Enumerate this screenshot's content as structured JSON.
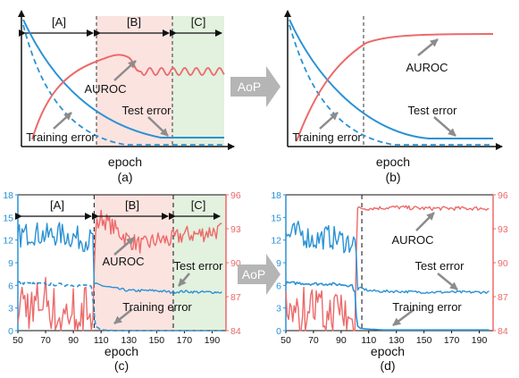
{
  "colors": {
    "blue": "#2a92d4",
    "red": "#ec6a6a",
    "regionA": "#ffffff",
    "regionB": "#fbe3e0",
    "regionC": "#e3f1df",
    "arrow_gray": "#b5b5b5",
    "axis": "#111111"
  },
  "labels": {
    "epoch": "epoch",
    "auroc": "AUROC",
    "test_error": "Test error",
    "training_error": "Training error",
    "aop": "AoP",
    "region_a": "[A]",
    "region_b": "[B]",
    "region_c": "[C]",
    "cap_a": "(a)",
    "cap_b": "(b)",
    "cap_c": "(c)",
    "cap_d": "(d)"
  },
  "chart_data": [
    {
      "panel": "a",
      "type": "line",
      "schematic": true,
      "xlabel": "epoch",
      "regions": [
        "[A]",
        "[B]",
        "[C]"
      ],
      "series": [
        {
          "name": "Test error",
          "style": "solid",
          "color": "#2a92d4"
        },
        {
          "name": "Training error",
          "style": "dashed",
          "color": "#2a92d4"
        },
        {
          "name": "AUROC",
          "style": "solid",
          "color": "#ec6a6a"
        }
      ],
      "annotations": [
        "AUROC",
        "Test error",
        "Training error"
      ]
    },
    {
      "panel": "b",
      "type": "line",
      "schematic": true,
      "xlabel": "epoch",
      "series": [
        {
          "name": "Test error",
          "style": "solid",
          "color": "#2a92d4"
        },
        {
          "name": "Training error",
          "style": "dashed",
          "color": "#2a92d4"
        },
        {
          "name": "AUROC",
          "style": "solid",
          "color": "#ec6a6a"
        }
      ],
      "annotations": [
        "AUROC",
        "Test error",
        "Training error"
      ]
    },
    {
      "panel": "c",
      "type": "line",
      "xlabel": "epoch",
      "xlim": [
        50,
        200
      ],
      "x_ticks": [
        50,
        70,
        90,
        110,
        130,
        150,
        170,
        190
      ],
      "y_left_ticks": [
        0,
        3,
        6,
        9,
        12,
        15,
        18
      ],
      "y_right_ticks": [
        84,
        87,
        90,
        93,
        96
      ],
      "region_bounds": [
        50,
        105,
        162,
        200
      ],
      "regions": [
        "[A]",
        "[B]",
        "[C]"
      ],
      "series": [
        {
          "name": "Test error",
          "axis": "left",
          "x": [
            50,
            60,
            70,
            80,
            90,
            100,
            104,
            105,
            110,
            120,
            130,
            140,
            150,
            160,
            170,
            180,
            190,
            197
          ],
          "values": [
            12.5,
            13,
            12.6,
            12.8,
            12.4,
            12,
            12,
            6.2,
            6,
            5.6,
            5.3,
            5.3,
            5.3,
            5.1,
            5.2,
            5.1,
            5.1,
            5.1
          ]
        },
        {
          "name": "Training error",
          "axis": "left",
          "x": [
            50,
            60,
            70,
            80,
            90,
            100,
            103,
            106,
            110,
            120,
            197
          ],
          "values": [
            6.4,
            6.2,
            6.2,
            6.1,
            6.0,
            6.0,
            5.7,
            0.6,
            0.1,
            0,
            0
          ]
        },
        {
          "name": "AUROC",
          "axis": "right",
          "x": [
            50,
            60,
            70,
            80,
            90,
            100,
            104,
            106,
            110,
            120,
            130,
            140,
            150,
            160,
            170,
            180,
            190,
            197
          ],
          "values": [
            87,
            86,
            87,
            85,
            86,
            86,
            85,
            93,
            94,
            93,
            92,
            91.5,
            92,
            92,
            92.5,
            92.5,
            92.8,
            92.8
          ]
        }
      ]
    },
    {
      "panel": "d",
      "type": "line",
      "xlabel": "epoch",
      "xlim": [
        50,
        200
      ],
      "x_ticks": [
        50,
        70,
        90,
        110,
        130,
        150,
        170,
        190
      ],
      "y_left_ticks": [
        0,
        3,
        6,
        9,
        12,
        15,
        18
      ],
      "y_right_ticks": [
        84,
        87,
        90,
        93,
        96
      ],
      "divider": 105,
      "series": [
        {
          "name": "Test error",
          "axis": "left",
          "x": [
            50,
            60,
            70,
            80,
            90,
            100,
            101,
            102,
            105,
            110,
            120,
            130,
            150,
            170,
            190,
            197
          ],
          "values": [
            12.5,
            13,
            12,
            12.5,
            12,
            11.5,
            10,
            5.5,
            5.6,
            5.3,
            5.2,
            5.2,
            5.1,
            5.1,
            5.1,
            5.1
          ]
        },
        {
          "name": "Training error",
          "axis": "left",
          "x": [
            50,
            60,
            70,
            80,
            90,
            98,
            100,
            101,
            102,
            104,
            110,
            120,
            197
          ],
          "values": [
            6.3,
            6.3,
            6.2,
            6.2,
            6.1,
            6.0,
            5.0,
            2.0,
            0.6,
            0.3,
            0.2,
            0.1,
            0.1
          ]
        },
        {
          "name": "AUROC",
          "axis": "right",
          "x": [
            50,
            60,
            70,
            80,
            90,
            100,
            101,
            102,
            110,
            130,
            150,
            170,
            190,
            197
          ],
          "values": [
            87,
            86,
            86,
            85,
            86,
            84,
            91,
            94.8,
            94.8,
            94.9,
            94.8,
            94.8,
            94.8,
            94.8
          ]
        }
      ]
    }
  ]
}
